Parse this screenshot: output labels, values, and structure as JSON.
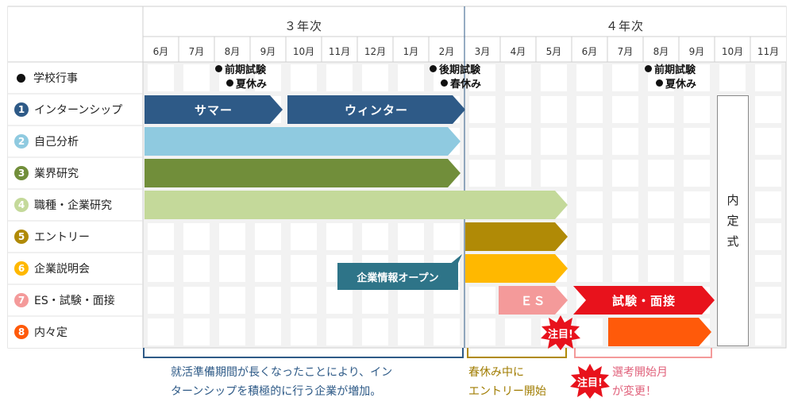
{
  "years": {
    "year3": "３年次",
    "year4": "４年次"
  },
  "months": [
    "6月",
    "7月",
    "8月",
    "9月",
    "10月",
    "11月",
    "12月",
    "1月",
    "2月",
    "3月",
    "4月",
    "5月",
    "6月",
    "7月",
    "8月",
    "9月",
    "10月",
    "11月"
  ],
  "rows": [
    {
      "icon": "bullet",
      "label": "学校行事",
      "color": "#111111"
    },
    {
      "icon": "1",
      "label": "インターンシップ",
      "color": "#2e5a87"
    },
    {
      "icon": "2",
      "label": "自己分析",
      "color": "#8fcae0"
    },
    {
      "icon": "3",
      "label": "業界研究",
      "color": "#718e3a"
    },
    {
      "icon": "4",
      "label": "職種・企業研究",
      "color": "#c4d99a"
    },
    {
      "icon": "5",
      "label": "エントリー",
      "color": "#b08a06"
    },
    {
      "icon": "6",
      "label": "企業説明会",
      "color": "#ffb800"
    },
    {
      "icon": "7",
      "label": "ES・試験・面接",
      "color": "#f49a9a"
    },
    {
      "icon": "8",
      "label": "内々定",
      "color": "#ff5a0a"
    }
  ],
  "events": {
    "e1_line1": "前期試験",
    "e1_line2": "夏休み",
    "e2_line1": "後期試験",
    "e2_line2": "春休み",
    "e3_line1": "前期試験",
    "e3_line2": "夏休み"
  },
  "bars": {
    "summer": "サマー",
    "winter": "ウィンター",
    "es": "ＥＳ",
    "exam_interview": "試験・面接"
  },
  "callout": "企業情報オープン",
  "naitei_chars": [
    "内",
    "定",
    "式"
  ],
  "attention": "注目!",
  "notes": {
    "prep_line1": "就活準備期間が長くなったことにより、イン",
    "prep_line2": "ターンシップを積極的に行う企業が増加。",
    "entry_line1": "春休み中に",
    "entry_line2": "エントリー開始",
    "selection_line1": "選考開始月",
    "selection_line2": "が変更！"
  },
  "colors": {
    "grid_bg": "#f2f2f2",
    "year_divider": "#2e5a87",
    "prep_bracket": "#2e5a87",
    "entry_bracket": "#b08a06",
    "selection_bracket": "#f49a9a",
    "prep_text": "#2e5a87",
    "entry_text": "#a07c00",
    "selection_text": "#e0607a",
    "burst": "#e8121c"
  }
}
